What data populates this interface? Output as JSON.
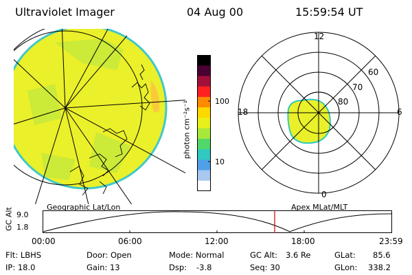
{
  "header": {
    "title": "Ultraviolet Imager",
    "date": "04 Aug 00",
    "time": "15:59:54 UT"
  },
  "geo_panel": {
    "label": "Geographic Lat/Lon"
  },
  "colorbar": {
    "unit_label": "photon cm⁻²s⁻¹",
    "scale": "log",
    "ticks": [
      "100",
      "10"
    ],
    "colors": [
      "#000000",
      "#4a0030",
      "#a0103a",
      "#ff2020",
      "#ff8a00",
      "#ffd800",
      "#e8f01a",
      "#a8e83a",
      "#50d868",
      "#30c8c0",
      "#50a0e8",
      "#a8c8f0",
      "#ffffff"
    ]
  },
  "polar_panel": {
    "label": "Apex MLat/MLT",
    "mlt_labels": {
      "top": "12",
      "left": "18",
      "right": "6",
      "bottom": "0"
    },
    "lat_labels": [
      "60",
      "70",
      "80"
    ]
  },
  "timeline": {
    "ylabel": "GC Alt",
    "yticks": [
      "9.0",
      "1.8"
    ],
    "xticks": [
      "00:00",
      "06:00",
      "12:00",
      "18:00",
      "23:59"
    ]
  },
  "info": {
    "row1": {
      "filter": "Flt: LBHS",
      "door": "Door: Open",
      "mode": "Mode: Normal",
      "gcalt_label": "GC Alt:",
      "gcalt_value": "3.6 Re",
      "glat_label": "GLat:",
      "glat_value": "85.6"
    },
    "row2": {
      "ip": "IP: 18.0",
      "gain": "Gain: 13",
      "dsp_label": "Dsp:",
      "dsp_value": "-3.8",
      "seq": "Seq: 30",
      "glon_label": "GLon:",
      "glon_value": "338.2"
    }
  },
  "colors": {
    "fill_main": "#eaf02a",
    "fill_green": "#b8e63c",
    "edge": "#30c8c0",
    "orange": "#ffb030",
    "current_time": "#cc0000"
  }
}
